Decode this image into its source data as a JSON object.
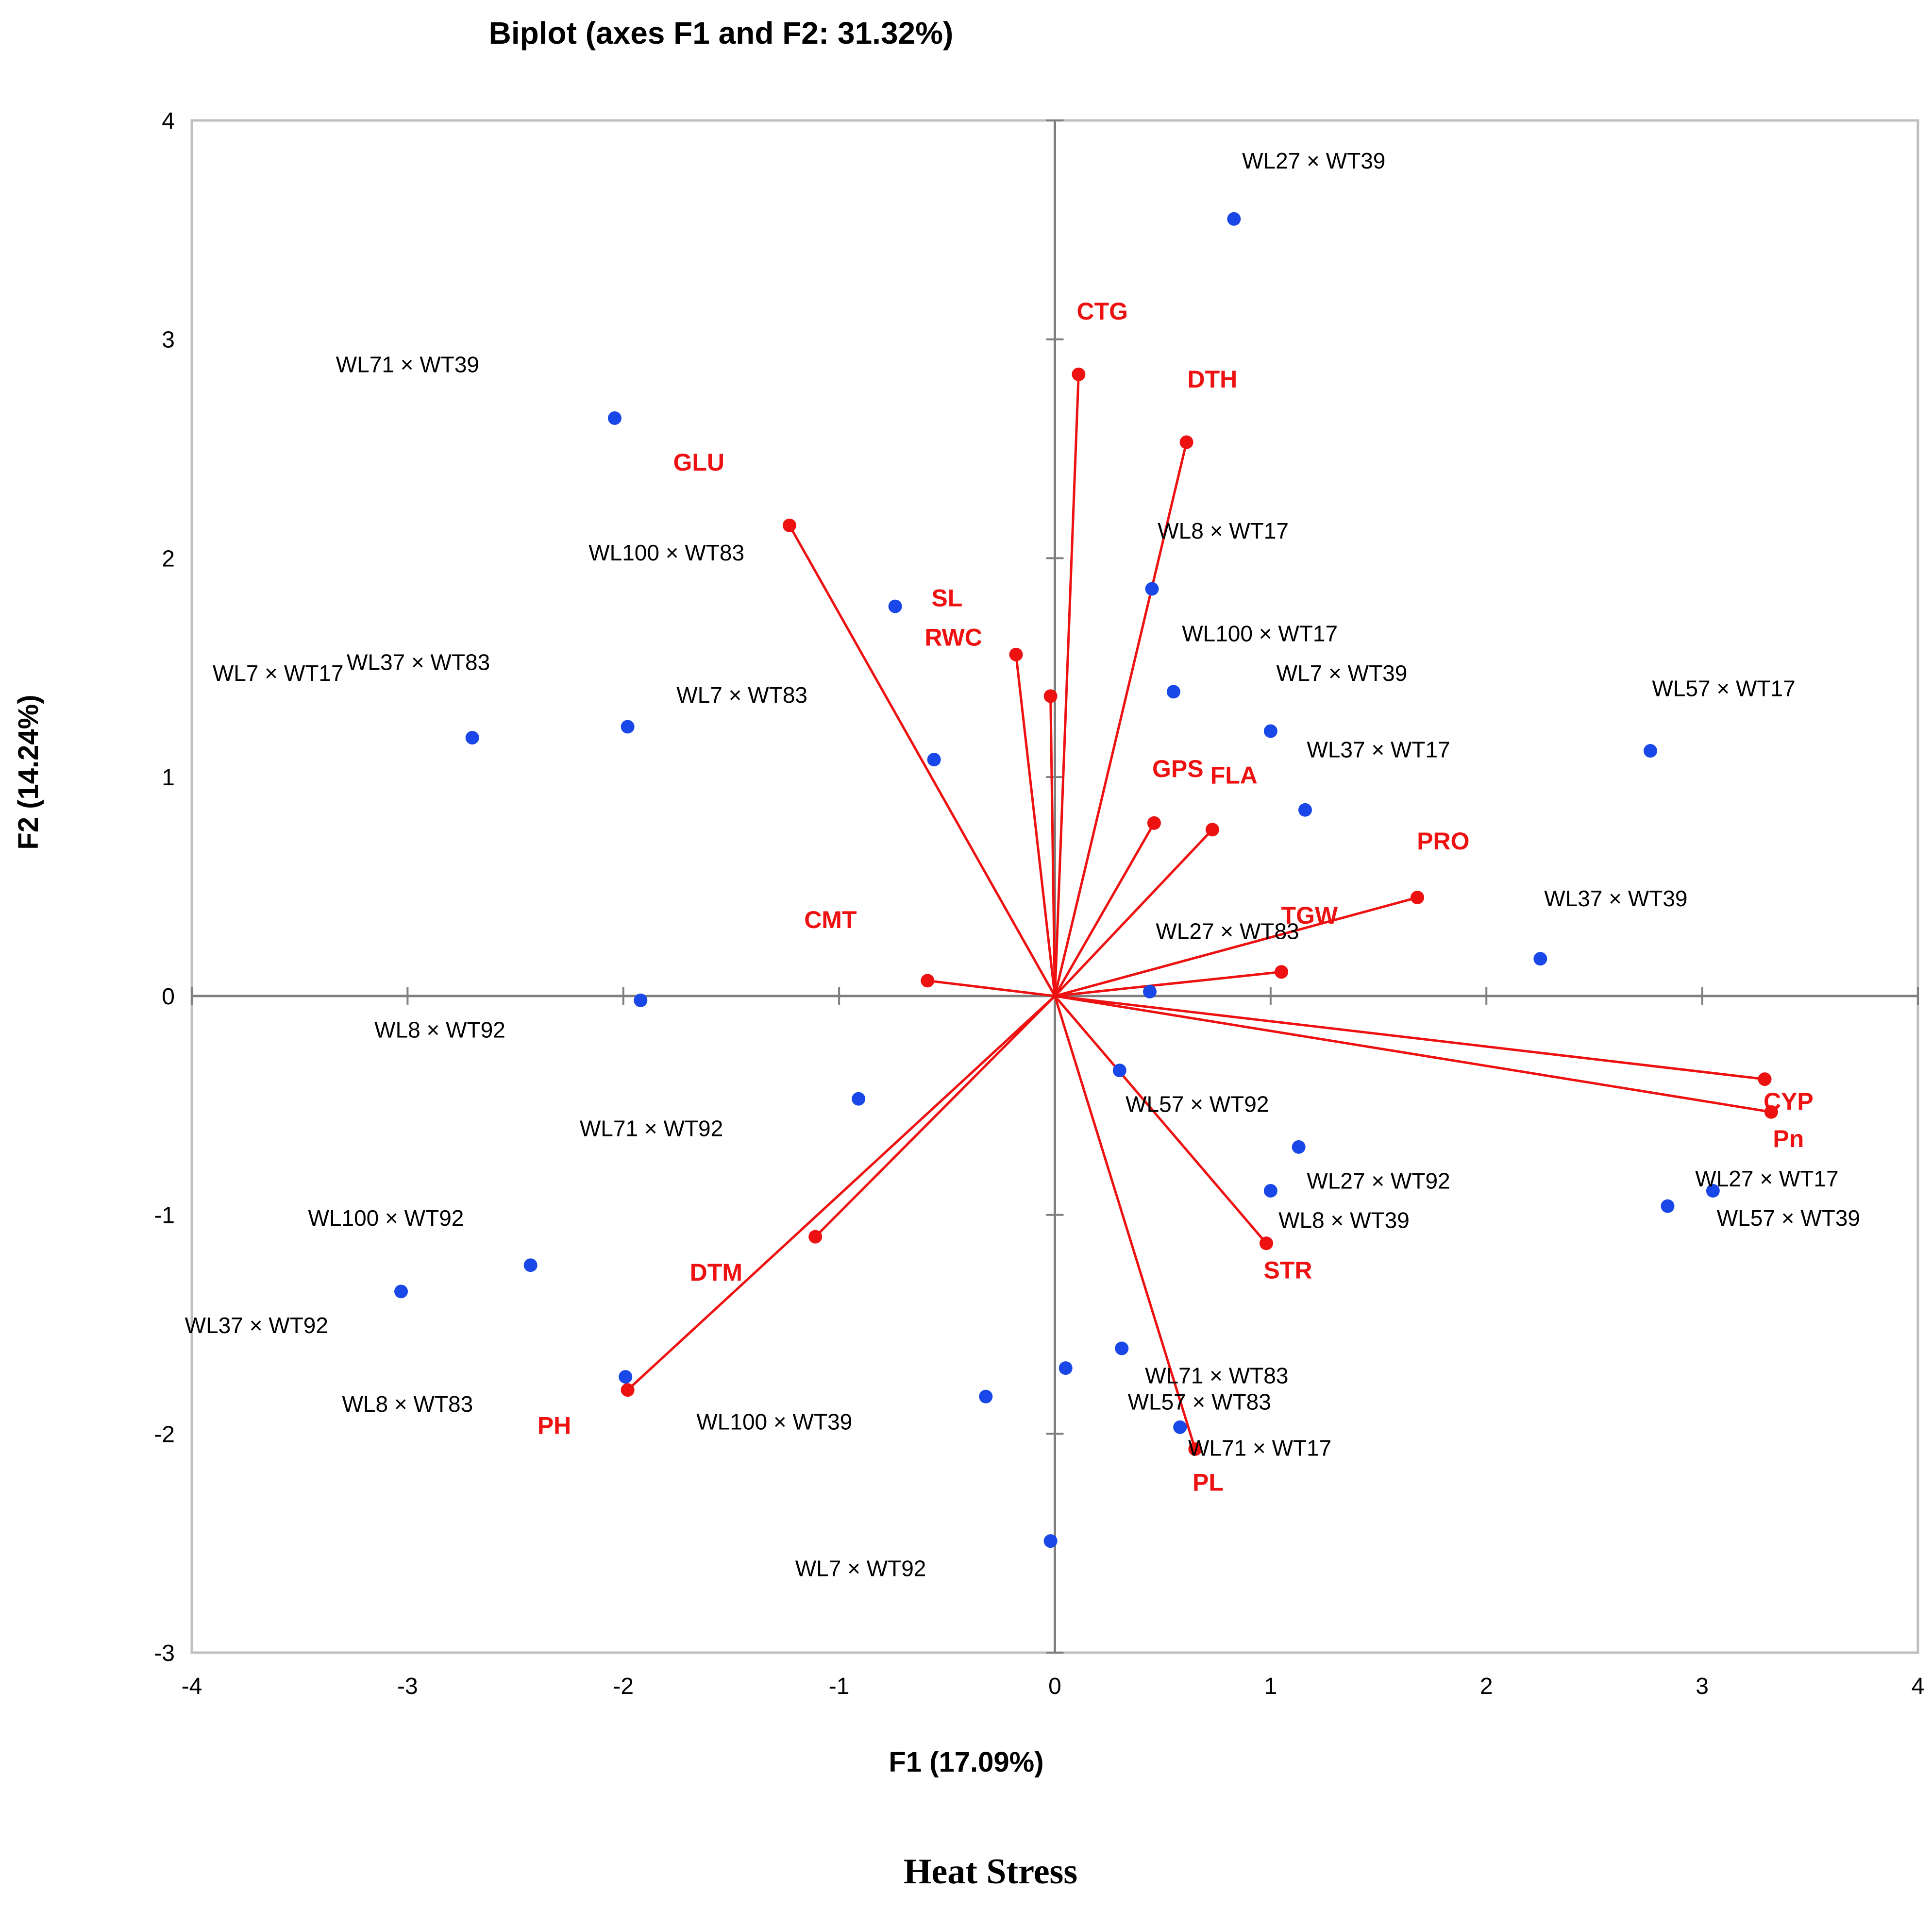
{
  "colors": {
    "observation": "#1a47e8",
    "variable": "#ee1111",
    "axis": "#7f7f7f",
    "frame": "#bfbfbf"
  },
  "caption": "Heat Stress",
  "chart_data": {
    "type": "scatter",
    "subtype": "biplot",
    "title": "Biplot (axes F1 and F2: 31.32%)",
    "xlabel": "F1 (17.09%)",
    "ylabel": "F2 (14.24%)",
    "xlim": [
      -4,
      4
    ],
    "ylim": [
      -3,
      4
    ],
    "xticks": [
      -4,
      -3,
      -2,
      -1,
      0,
      1,
      2,
      3,
      4
    ],
    "yticks": [
      -3,
      -2,
      -1,
      0,
      1,
      2,
      3,
      4
    ],
    "grid": false,
    "observations": [
      {
        "label": "WL27 × WT39",
        "x": 0.83,
        "y": 3.55,
        "lx": 1.2,
        "ly": 3.78
      },
      {
        "label": "WL71 × WT39",
        "x": -2.04,
        "y": 2.64,
        "lx": -3.0,
        "ly": 2.85
      },
      {
        "label": "WL100 × WT83",
        "x": -0.74,
        "y": 1.78,
        "lx": -1.8,
        "ly": 1.99
      },
      {
        "label": "WL8 × WT17",
        "x": 0.45,
        "y": 1.86,
        "lx": 0.78,
        "ly": 2.09
      },
      {
        "label": "WL37 × WT83",
        "x": -1.98,
        "y": 1.23,
        "lx": -2.95,
        "ly": 1.49
      },
      {
        "label": "WL7 × WT17",
        "x": -2.7,
        "y": 1.18,
        "lx": -3.6,
        "ly": 1.44
      },
      {
        "label": "WL7 × WT83",
        "x": -0.56,
        "y": 1.08,
        "lx": -1.45,
        "ly": 1.34
      },
      {
        "label": "WL100 × WT17",
        "x": 0.55,
        "y": 1.39,
        "lx": 0.95,
        "ly": 1.62
      },
      {
        "label": "WL7 × WT39",
        "x": 1.0,
        "y": 1.21,
        "lx": 1.33,
        "ly": 1.44
      },
      {
        "label": "WL37 × WT17",
        "x": 1.16,
        "y": 0.85,
        "lx": 1.5,
        "ly": 1.09
      },
      {
        "label": "WL57 × WT17",
        "x": 2.76,
        "y": 1.12,
        "lx": 3.1,
        "ly": 1.37
      },
      {
        "label": "WL37 × WT39",
        "x": 2.25,
        "y": 0.17,
        "lx": 2.6,
        "ly": 0.41
      },
      {
        "label": "WL27 × WT83",
        "x": 0.44,
        "y": 0.02,
        "lx": 0.8,
        "ly": 0.26
      },
      {
        "label": "WL8 × WT92",
        "x": -1.92,
        "y": -0.02,
        "lx": -2.85,
        "ly": -0.19
      },
      {
        "label": "WL71 × WT92",
        "x": -0.91,
        "y": -0.47,
        "lx": -1.87,
        "ly": -0.64
      },
      {
        "label": "WL57 × WT92",
        "x": 0.3,
        "y": -0.34,
        "lx": 0.66,
        "ly": -0.53
      },
      {
        "label": "WL27 × WT92",
        "x": 1.13,
        "y": -0.69,
        "lx": 1.5,
        "ly": -0.88
      },
      {
        "label": "WL8 × WT39",
        "x": 1.0,
        "y": -0.89,
        "lx": 1.34,
        "ly": -1.06
      },
      {
        "label": "WL27 × WT17",
        "x": 3.05,
        "y": -0.89,
        "lx": 3.3,
        "ly": -0.87
      },
      {
        "label": "WL57 × WT39",
        "x": 2.84,
        "y": -0.96,
        "lx": 3.4,
        "ly": -1.05
      },
      {
        "label": "WL100 × WT92",
        "x": -2.43,
        "y": -1.23,
        "lx": -3.1,
        "ly": -1.05
      },
      {
        "label": "WL37 × WT92",
        "x": -3.03,
        "y": -1.35,
        "lx": -3.7,
        "ly": -1.54
      },
      {
        "label": "WL8 × WT83",
        "x": -1.99,
        "y": -1.74,
        "lx": -3.0,
        "ly": -1.9
      },
      {
        "label": "WL100 × WT39",
        "x": -0.32,
        "y": -1.83,
        "lx": -1.3,
        "ly": -1.98
      },
      {
        "label": "WL71 × WT83",
        "x": 0.31,
        "y": -1.61,
        "lx": 0.75,
        "ly": -1.77
      },
      {
        "label": "WL57 × WT83",
        "x": 0.05,
        "y": -1.7,
        "lx": 0.67,
        "ly": -1.89
      },
      {
        "label": "WL71 × WT17",
        "x": 0.58,
        "y": -1.97,
        "lx": 0.95,
        "ly": -2.1
      },
      {
        "label": "WL7 × WT92",
        "x": -0.02,
        "y": -2.49,
        "lx": -0.9,
        "ly": -2.65
      }
    ],
    "variables": [
      {
        "label": "CTG",
        "x": 0.11,
        "y": 2.84,
        "lx": 0.22,
        "ly": 3.09
      },
      {
        "label": "DTH",
        "x": 0.61,
        "y": 2.53,
        "lx": 0.73,
        "ly": 2.78
      },
      {
        "label": "GLU",
        "x": -1.23,
        "y": 2.15,
        "lx": -1.65,
        "ly": 2.4
      },
      {
        "label": "SL",
        "x": -0.02,
        "y": 1.37,
        "lx": -0.5,
        "ly": 1.78
      },
      {
        "label": "RWC",
        "x": -0.18,
        "y": 1.56,
        "lx": -0.47,
        "ly": 1.6
      },
      {
        "label": "GPS",
        "x": 0.46,
        "y": 0.79,
        "lx": 0.57,
        "ly": 1.0
      },
      {
        "label": "FLA",
        "x": 0.73,
        "y": 0.76,
        "lx": 0.83,
        "ly": 0.97
      },
      {
        "label": "PRO",
        "x": 1.68,
        "y": 0.45,
        "lx": 1.8,
        "ly": 0.67
      },
      {
        "label": "TGW",
        "x": 1.05,
        "y": 0.11,
        "lx": 1.18,
        "ly": 0.33
      },
      {
        "label": "CMT",
        "x": -0.59,
        "y": 0.07,
        "lx": -1.04,
        "ly": 0.31
      },
      {
        "label": "CYP",
        "x": 3.29,
        "y": -0.38,
        "lx": 3.4,
        "ly": -0.52
      },
      {
        "label": "Pn",
        "x": 3.32,
        "y": -0.53,
        "lx": 3.4,
        "ly": -0.69
      },
      {
        "label": "STR",
        "x": 0.98,
        "y": -1.13,
        "lx": 1.08,
        "ly": -1.29
      },
      {
        "label": "DTM",
        "x": -1.11,
        "y": -1.1,
        "lx": -1.57,
        "ly": -1.3
      },
      {
        "label": "PH",
        "x": -1.98,
        "y": -1.8,
        "lx": -2.32,
        "ly": -2.0
      },
      {
        "label": "PL",
        "x": 0.65,
        "y": -2.07,
        "lx": 0.71,
        "ly": -2.26
      }
    ]
  }
}
